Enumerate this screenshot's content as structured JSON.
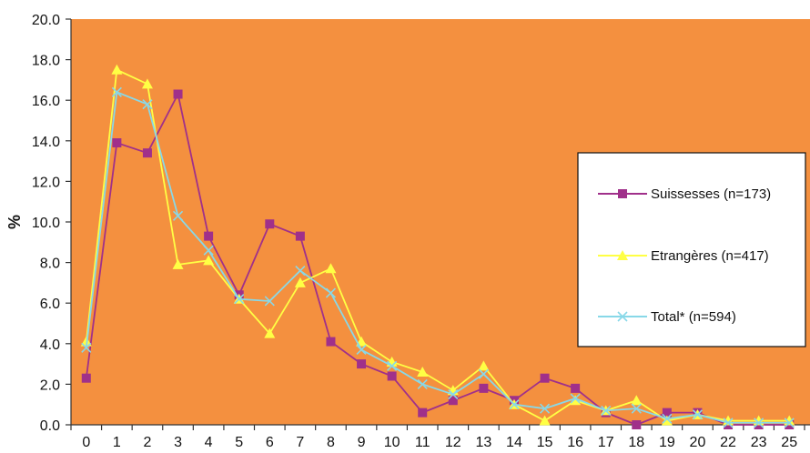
{
  "chart_data": {
    "type": "line",
    "ylabel": "%",
    "xlabel": "",
    "ylim": [
      0,
      20
    ],
    "yticks": [
      "0.0",
      "2.0",
      "4.0",
      "6.0",
      "8.0",
      "10.0",
      "12.0",
      "14.0",
      "16.0",
      "18.0",
      "20.0"
    ],
    "categories": [
      "0",
      "1",
      "2",
      "3",
      "4",
      "5",
      "6",
      "7",
      "8",
      "9",
      "10",
      "11",
      "12",
      "13",
      "14",
      "15",
      "16",
      "17",
      "18",
      "19",
      "20",
      "22",
      "23",
      "25"
    ],
    "grid": false,
    "legend_position": "right",
    "plot_background": "#F4903F",
    "series": [
      {
        "name": "Suissesses (n=173)",
        "color": "#A0308A",
        "marker": "square",
        "values": [
          2.3,
          13.9,
          13.4,
          16.3,
          9.3,
          6.4,
          9.9,
          9.3,
          4.1,
          3.0,
          2.4,
          0.6,
          1.2,
          1.8,
          1.2,
          2.3,
          1.8,
          0.6,
          0.0,
          0.6,
          0.6,
          0.0,
          0.0,
          0.0
        ]
      },
      {
        "name": "Etrangères (n=417)",
        "color": "#FFFF44",
        "marker": "triangle",
        "values": [
          4.1,
          17.5,
          16.8,
          7.9,
          8.1,
          6.2,
          4.5,
          7.0,
          7.7,
          4.1,
          3.1,
          2.6,
          1.7,
          2.9,
          1.0,
          0.2,
          1.2,
          0.7,
          1.2,
          0.2,
          0.5,
          0.2,
          0.2,
          0.2
        ]
      },
      {
        "name": "Total* (n=594)",
        "color": "#88D8E8",
        "marker": "x",
        "values": [
          3.8,
          16.4,
          15.8,
          10.3,
          8.6,
          6.2,
          6.1,
          7.6,
          6.5,
          3.7,
          2.9,
          2.0,
          1.5,
          2.5,
          1.0,
          0.8,
          1.3,
          0.7,
          0.8,
          0.3,
          0.5,
          0.1,
          0.1,
          0.1
        ]
      }
    ]
  }
}
